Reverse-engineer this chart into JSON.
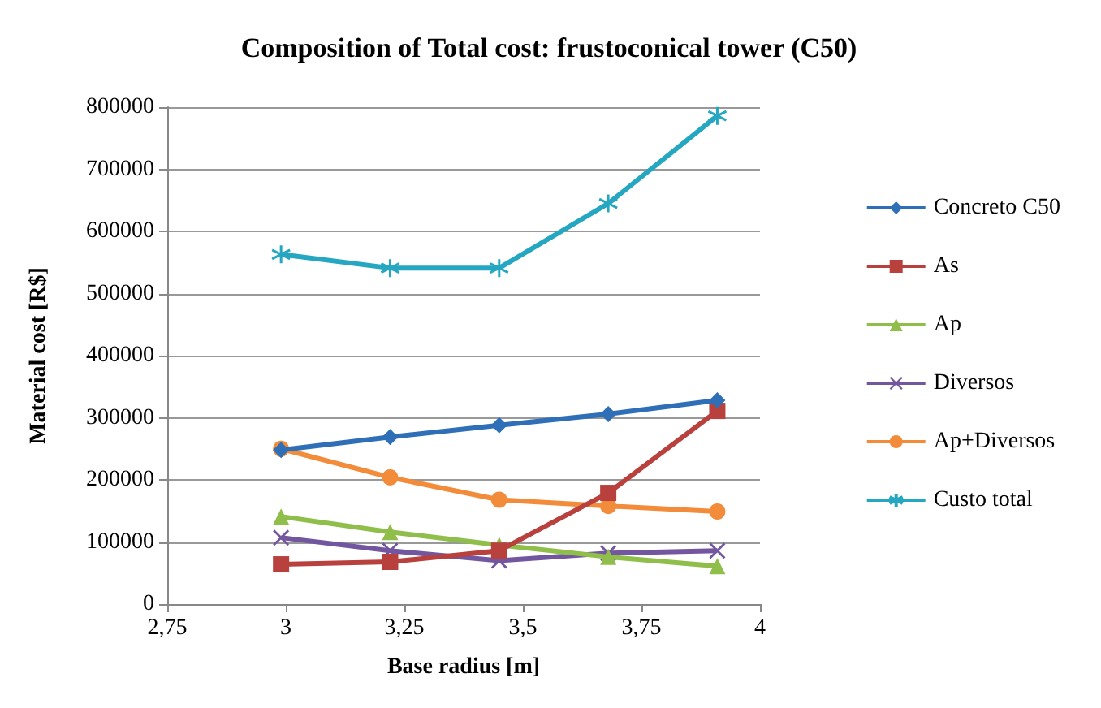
{
  "chart_data": {
    "type": "line",
    "title": "Composition of Total cost: frustoconical tower (C50)",
    "xlabel": "Base radius [m]",
    "ylabel": "Material cost [R$]",
    "x": [
      2.99,
      3.22,
      3.45,
      3.68,
      3.91
    ],
    "series": [
      {
        "name": "Concreto C50",
        "color": "#2e6fb7",
        "marker": "diamond",
        "values": [
          248000,
          269000,
          288000,
          306000,
          328000
        ]
      },
      {
        "name": "As",
        "color": "#b8413e",
        "marker": "square",
        "values": [
          64000,
          68000,
          86000,
          179000,
          311000
        ]
      },
      {
        "name": "Ap",
        "color": "#8fbf4a",
        "marker": "triangle",
        "values": [
          141000,
          116000,
          95000,
          76000,
          61000
        ]
      },
      {
        "name": "Diversos",
        "color": "#7356a0",
        "marker": "cross",
        "values": [
          107000,
          86000,
          70000,
          82000,
          86000
        ]
      },
      {
        "name": "Ap+Diversos",
        "color": "#f28c3a",
        "marker": "circle",
        "values": [
          250000,
          204000,
          168000,
          158000,
          149000
        ]
      },
      {
        "name": "Custo total",
        "color": "#25a7c1",
        "marker": "star",
        "values": [
          563000,
          541000,
          541000,
          645000,
          786000
        ]
      }
    ],
    "xlim": [
      2.75,
      4
    ],
    "xticks": [
      {
        "value": 2.75,
        "label": "2,75"
      },
      3,
      {
        "value": 3.25,
        "label": "3,25"
      },
      {
        "value": 3.5,
        "label": "3,5"
      },
      {
        "value": 3.75,
        "label": "3,75"
      },
      4
    ],
    "ylim": [
      0,
      800000
    ],
    "yticks": [
      0,
      100000,
      200000,
      300000,
      400000,
      500000,
      600000,
      700000,
      800000
    ],
    "grid": "y",
    "legend": "right",
    "line_style": "solid"
  }
}
